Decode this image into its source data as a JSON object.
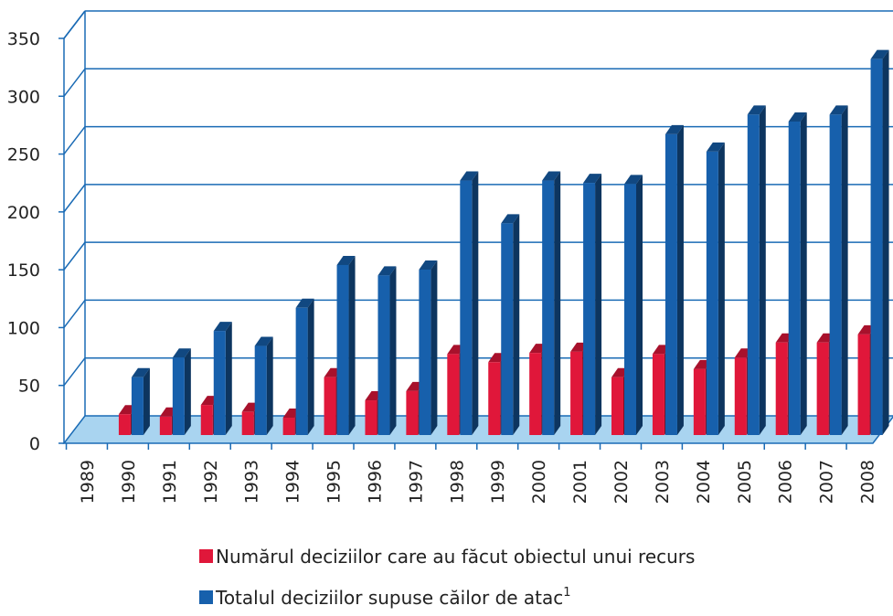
{
  "chart_data": {
    "type": "bar3d",
    "categories": [
      "1989",
      "1990",
      "1991",
      "1992",
      "1993",
      "1994",
      "1995",
      "1996",
      "1997",
      "1998",
      "1999",
      "2000",
      "2001",
      "2002",
      "2003",
      "2004",
      "2005",
      "2006",
      "2007",
      "2008"
    ],
    "series": [
      {
        "name": "Numărul deciziilor care au făcut obiectul unui recurs",
        "color": "#e0173a",
        "values": [
          null,
          18,
          16,
          26,
          20,
          15,
          50,
          30,
          38,
          70,
          63,
          71,
          72,
          50,
          70,
          57,
          67,
          80,
          80,
          87
        ]
      },
      {
        "name": "Totalul deciziilor supuse căilor de atac",
        "footnote": "1",
        "color": "#1760ac",
        "values": [
          null,
          50,
          67,
          90,
          77,
          110,
          147,
          138,
          143,
          220,
          183,
          220,
          218,
          217,
          260,
          245,
          277,
          271,
          277,
          325
        ]
      }
    ],
    "ylim": [
      0,
      350
    ],
    "yticks": [
      0,
      50,
      100,
      150,
      200,
      250,
      300,
      350
    ],
    "grid": true
  }
}
